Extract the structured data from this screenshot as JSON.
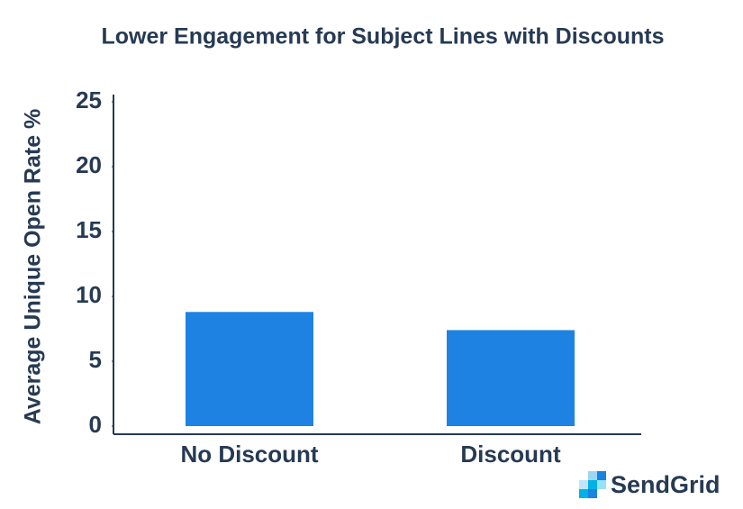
{
  "chart_data": {
    "type": "bar",
    "title": "Lower Engagement for Subject Lines with Discounts",
    "y_label": "Average Unique Open Rate %",
    "categories": [
      "No Discount",
      "Discount"
    ],
    "values": [
      8.8,
      7.4
    ],
    "color": "#1e82e3",
    "ylim": [
      0,
      25
    ],
    "yticks": [
      0,
      5,
      10,
      15,
      20,
      25
    ]
  },
  "brand": "SendGrid"
}
